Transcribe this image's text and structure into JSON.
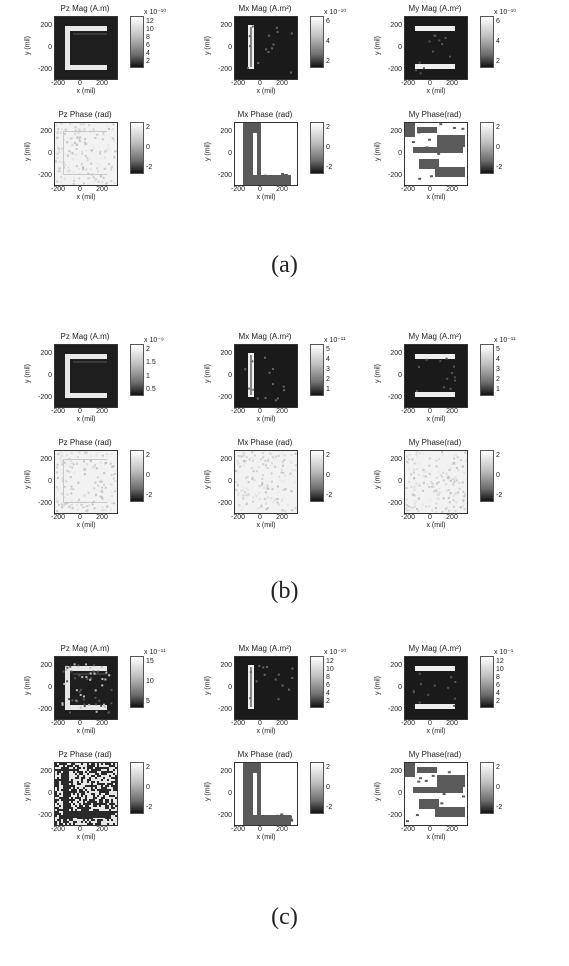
{
  "figure_labels": [
    "(a)",
    "(b)",
    "(c)"
  ],
  "chart_data": [
    {
      "group": "(a)",
      "panels": [
        {
          "type": "heatmap",
          "shape": "c",
          "title": "Pz Mag (A.m)",
          "xlabel": "x (mil)",
          "ylabel": "y (mil)",
          "xticks": [
            "-200",
            "0",
            "200"
          ],
          "yticks": [
            "200",
            "0",
            "-200"
          ],
          "cbar_ticks": [
            "12",
            "10",
            "8",
            "6",
            "4",
            "2"
          ],
          "cbar_exp": "x 10⁻¹⁰"
        },
        {
          "type": "heatmap",
          "shape": "vbar",
          "title": "Mx Mag (A.m²)",
          "xlabel": "x (mil)",
          "ylabel": "y (mil)",
          "xticks": [
            "-200",
            "0",
            "200"
          ],
          "yticks": [
            "200",
            "0",
            "-200"
          ],
          "cbar_ticks": [
            "6",
            "4",
            "2"
          ],
          "cbar_exp": "x 10⁻¹⁰"
        },
        {
          "type": "heatmap",
          "shape": "hbars",
          "title": "My Mag (A.m²)",
          "xlabel": "x (mil)",
          "ylabel": "y (mil)",
          "xticks": [
            "-200",
            "0",
            "200"
          ],
          "yticks": [
            "200",
            "0",
            "-200"
          ],
          "cbar_ticks": [
            "6",
            "4",
            "2"
          ],
          "cbar_exp": "x 10⁻¹⁰"
        },
        {
          "type": "heatmap",
          "shape": "phase-noise",
          "title": "Pz Phase (rad)",
          "xlabel": "x (mil)",
          "ylabel": "y (mil)",
          "xticks": [
            "-200",
            "0",
            "200"
          ],
          "yticks": [
            "200",
            "0",
            "-200"
          ],
          "cbar_ticks": [
            "2",
            "0",
            "-2"
          ],
          "cbar_exp": ""
        },
        {
          "type": "heatmap",
          "shape": "phase-mx",
          "title": "Mx Phase (rad)",
          "xlabel": "x (mil)",
          "ylabel": "y (mil)",
          "xticks": [
            "-200",
            "0",
            "200"
          ],
          "yticks": [
            "200",
            "0",
            "-200"
          ],
          "cbar_ticks": [
            "2",
            "0",
            "-2"
          ],
          "cbar_exp": ""
        },
        {
          "type": "heatmap",
          "shape": "phase-my",
          "title": "My Phase(rad)",
          "xlabel": "x (mil)",
          "ylabel": "y (mil)",
          "xticks": [
            "-200",
            "0",
            "200"
          ],
          "yticks": [
            "200",
            "0",
            "-200"
          ],
          "cbar_ticks": [
            "2",
            "0",
            "-2"
          ],
          "cbar_exp": ""
        }
      ]
    },
    {
      "group": "(b)",
      "panels": [
        {
          "type": "heatmap",
          "shape": "c",
          "title": "Pz Mag (A.m)",
          "xlabel": "x (mil)",
          "ylabel": "y (mil)",
          "xticks": [
            "-200",
            "0",
            "200"
          ],
          "yticks": [
            "200",
            "0",
            "-200"
          ],
          "cbar_ticks": [
            "2",
            "1.5",
            "1",
            "0.5"
          ],
          "cbar_exp": "x 10⁻⁹"
        },
        {
          "type": "heatmap",
          "shape": "vbar",
          "title": "Mx Mag (A.m²)",
          "xlabel": "x (mil)",
          "ylabel": "y (mil)",
          "xticks": [
            "-200",
            "0",
            "200"
          ],
          "yticks": [
            "200",
            "0",
            "-200"
          ],
          "cbar_ticks": [
            "5",
            "4",
            "3",
            "2",
            "1"
          ],
          "cbar_exp": "x 10⁻¹¹"
        },
        {
          "type": "heatmap",
          "shape": "hbars",
          "title": "My Mag (A.m²)",
          "xlabel": "x (mil)",
          "ylabel": "y (mil)",
          "xticks": [
            "-200",
            "0",
            "200"
          ],
          "yticks": [
            "200",
            "0",
            "-200"
          ],
          "cbar_ticks": [
            "5",
            "4",
            "3",
            "2",
            "1"
          ],
          "cbar_exp": "x 10⁻¹¹"
        },
        {
          "type": "heatmap",
          "shape": "phase-noise",
          "title": "Pz Phase (rad)",
          "xlabel": "x (mil)",
          "ylabel": "y (mil)",
          "xticks": [
            "-200",
            "0",
            "200"
          ],
          "yticks": [
            "200",
            "0",
            "-200"
          ],
          "cbar_ticks": [
            "2",
            "0",
            "-2"
          ],
          "cbar_exp": ""
        },
        {
          "type": "heatmap",
          "shape": "phase-light",
          "title": "Mx Phase (rad)",
          "xlabel": "x (mil)",
          "ylabel": "y (mil)",
          "xticks": [
            "-200",
            "0",
            "200"
          ],
          "yticks": [
            "200",
            "0",
            "-200"
          ],
          "cbar_ticks": [
            "2",
            "0",
            "-2"
          ],
          "cbar_exp": ""
        },
        {
          "type": "heatmap",
          "shape": "phase-light",
          "title": "My Phase(rad)",
          "xlabel": "x (mil)",
          "ylabel": "y (mil)",
          "xticks": [
            "-200",
            "0",
            "200"
          ],
          "yticks": [
            "200",
            "0",
            "-200"
          ],
          "cbar_ticks": [
            "2",
            "0",
            "-2"
          ],
          "cbar_exp": ""
        }
      ]
    },
    {
      "group": "(c)",
      "panels": [
        {
          "type": "heatmap",
          "shape": "c-noisy",
          "title": "Pz Mag (A.m)",
          "xlabel": "x (mil)",
          "ylabel": "y (mil)",
          "xticks": [
            "-200",
            "0",
            "200"
          ],
          "yticks": [
            "200",
            "0",
            "-200"
          ],
          "cbar_ticks": [
            "15",
            "10",
            "5"
          ],
          "cbar_exp": "x 10⁻¹¹"
        },
        {
          "type": "heatmap",
          "shape": "vbar",
          "title": "Mx Mag (A.m²)",
          "xlabel": "x (mil)",
          "ylabel": "y (mil)",
          "xticks": [
            "-200",
            "0",
            "200"
          ],
          "yticks": [
            "200",
            "0",
            "-200"
          ],
          "cbar_ticks": [
            "12",
            "10",
            "8",
            "6",
            "4",
            "2"
          ],
          "cbar_exp": "x 10⁻¹⁰"
        },
        {
          "type": "heatmap",
          "shape": "hbars",
          "title": "My Mag (A.m²)",
          "xlabel": "x (mil)",
          "ylabel": "y (mil)",
          "xticks": [
            "-200",
            "0",
            "200"
          ],
          "yticks": [
            "200",
            "0",
            "-200"
          ],
          "cbar_ticks": [
            "12",
            "10",
            "8",
            "6",
            "4",
            "2"
          ],
          "cbar_exp": "x 10⁻¹"
        },
        {
          "type": "heatmap",
          "shape": "phase-checker",
          "title": "Pz Phase (rad)",
          "xlabel": "x (mil)",
          "ylabel": "y (mil)",
          "xticks": [
            "-200",
            "0",
            "200"
          ],
          "yticks": [
            "200",
            "0",
            "-200"
          ],
          "cbar_ticks": [
            "2",
            "0",
            "-2"
          ],
          "cbar_exp": ""
        },
        {
          "type": "heatmap",
          "shape": "phase-mx",
          "title": "Mx Phase (rad)",
          "xlabel": "x (mil)",
          "ylabel": "y (mil)",
          "xticks": [
            "-200",
            "0",
            "200"
          ],
          "yticks": [
            "200",
            "0",
            "-200"
          ],
          "cbar_ticks": [
            "2",
            "0",
            "-2"
          ],
          "cbar_exp": ""
        },
        {
          "type": "heatmap",
          "shape": "phase-my",
          "title": "My Phase(rad)",
          "xlabel": "x (mil)",
          "ylabel": "y (mil)",
          "xticks": [
            "-200",
            "0",
            "200"
          ],
          "yticks": [
            "200",
            "0",
            "-200"
          ],
          "cbar_ticks": [
            "2",
            "0",
            "-2"
          ],
          "cbar_exp": ""
        }
      ]
    }
  ]
}
